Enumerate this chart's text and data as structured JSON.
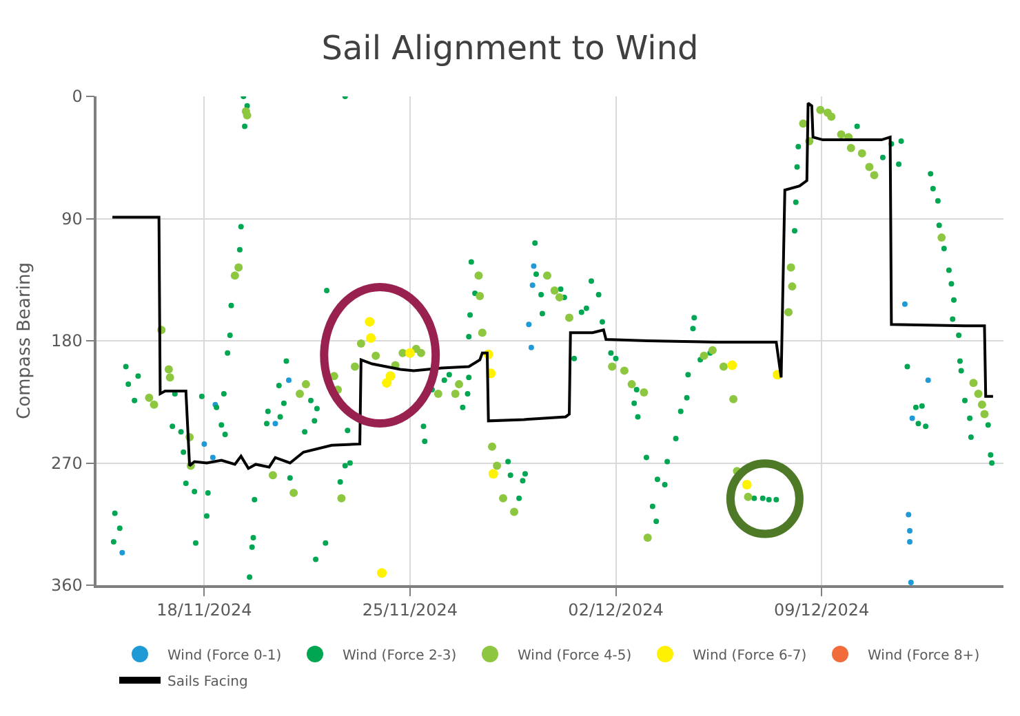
{
  "chart_data": {
    "type": "scatter",
    "title": "Sail Alignment to Wind",
    "ylabel": "Compass Bearing",
    "xlim": [
      "2024-11-14T08:00",
      "2024-12-15T04:30"
    ],
    "xticks": [
      {
        "value": "2024-11-18",
        "label": "18/11/2024"
      },
      {
        "value": "2024-11-25",
        "label": "25/11/2024"
      },
      {
        "value": "2024-12-02",
        "label": "02/12/2024"
      },
      {
        "value": "2024-12-09",
        "label": "09/12/2024"
      }
    ],
    "ylim": [
      360,
      0
    ],
    "yticks": [
      0,
      90,
      180,
      270,
      360
    ],
    "grid": true,
    "legend": "bottom",
    "marker": "circle",
    "line_style": "solid",
    "series": [
      {
        "name": "Wind (Force 0-1)",
        "color": "#1f9ad6",
        "x": [
          "2024-11-15T05:00",
          "2024-11-18T00:00",
          "2024-11-18T09:00",
          "2024-11-20T21:00",
          "2024-11-20T10:00",
          "2024-11-18T07:00",
          "2024-11-29T05:00",
          "2024-11-29T04:00",
          "2024-11-29T01:00",
          "2024-11-29T03:00",
          "2024-12-11T20:00",
          "2024-12-12T15:00",
          "2024-12-12T02:00",
          "2024-12-11T23:00",
          "2024-12-12T00:00",
          "2024-12-12T00:00",
          "2024-12-12T01:00"
        ],
        "values": [
          336,
          256,
          227,
          209,
          241,
          266,
          125,
          139,
          168,
          185,
          153,
          209,
          237,
          308,
          320,
          328,
          358
        ]
      },
      {
        "name": "Wind (Force 2-3)",
        "color": "#00a651",
        "x": [
          "2024-11-19T08:00",
          "2024-11-19T11:00",
          "2024-11-19T09:00",
          "2024-11-22T19:00",
          "2024-11-19T06:00",
          "2024-11-19T05:00",
          "2024-11-18T22:00",
          "2024-11-18T21:00",
          "2024-11-18T19:00",
          "2024-11-15T08:00",
          "2024-11-15T10:00",
          "2024-11-15T18:00",
          "2024-11-15T15:00",
          "2024-11-14T23:00",
          "2024-11-15T03:00",
          "2024-11-14T22:00",
          "2024-11-17T00:00",
          "2024-11-16T22:00",
          "2024-11-17T05:00",
          "2024-11-17T07:00",
          "2024-11-17T09:00",
          "2024-11-17T16:00",
          "2024-11-17T17:00",
          "2024-11-17T22:00",
          "2024-11-18T02:00",
          "2024-11-18T03:00",
          "2024-11-18T10:00",
          "2024-11-18T16:00",
          "2024-11-18T14:00",
          "2024-11-18T17:00",
          "2024-11-19T17:00",
          "2024-11-19T16:00",
          "2024-11-19T15:00",
          "2024-11-19T13:00",
          "2024-11-20T03:00",
          "2024-11-20T04:00",
          "2024-11-20T13:00",
          "2024-11-20T14:00",
          "2024-11-20T17:00",
          "2024-11-20T19:00",
          "2024-11-20T22:00",
          "2024-11-21T15:00",
          "2024-11-21T18:00",
          "2024-11-21T10:00",
          "2024-11-22T04:00",
          "2024-11-21T20:00",
          "2024-11-22T03:00",
          "2024-11-21T19:00",
          "2024-11-22T15:00",
          "2024-11-22T19:00",
          "2024-11-22T21:00",
          "2024-11-22T23:00",
          "2024-11-25T11:00",
          "2024-11-25T12:00",
          "2024-11-25T18:00",
          "2024-11-26T04:00",
          "2024-11-26T08:00",
          "2024-11-26T19:00",
          "2024-11-26T23:00",
          "2024-11-27T00:00",
          "2024-11-27T02:00",
          "2024-11-27T01:00",
          "2024-11-27T00:00",
          "2024-11-27T05:00",
          "2024-11-28T08:00",
          "2024-11-28T10:00",
          "2024-11-28T17:00",
          "2024-11-28T20:00",
          "2024-11-28T22:00",
          "2024-11-29T06:00",
          "2024-11-29T07:00",
          "2024-11-29T11:00",
          "2024-11-29T12:00",
          "2024-11-30T03:00",
          "2024-11-30T06:00",
          "2024-11-30T14:00",
          "2024-11-30T20:00",
          "2024-12-01T00:00",
          "2024-12-01T04:00",
          "2024-12-01T10:00",
          "2024-12-01T13:00",
          "2024-12-01T20:00",
          "2024-12-02T00:00",
          "2024-12-02T15:00",
          "2024-12-02T17:00",
          "2024-12-02T18:00",
          "2024-12-03T01:00",
          "2024-12-03T06:00",
          "2024-12-03T09:00",
          "2024-12-03T10:00",
          "2024-12-03T16:00",
          "2024-12-03T18:00",
          "2024-12-04T01:00",
          "2024-12-04T05:00",
          "2024-12-04T10:00",
          "2024-12-04T11:00",
          "2024-12-04T15:00",
          "2024-12-04T16:00",
          "2024-12-04T21:00",
          "2024-12-05T05:00",
          "2024-12-06T17:00",
          "2024-12-07T00:00",
          "2024-12-07T05:00",
          "2024-12-07T11:00",
          "2024-12-08T03:00",
          "2024-12-08T02:00",
          "2024-12-08T04:00",
          "2024-12-08T05:00",
          "2024-12-10T05:00",
          "2024-12-11T02:00",
          "2024-12-11T09:00",
          "2024-12-11T17:00",
          "2024-12-11T15:00",
          "2024-12-12T17:00",
          "2024-12-12T19:00",
          "2024-12-12T23:00",
          "2024-12-13T00:00",
          "2024-12-13T04:00",
          "2024-12-13T08:00",
          "2024-12-13T10:00",
          "2024-12-13T12:00",
          "2024-12-13T11:00",
          "2024-12-13T16:00",
          "2024-12-11T22:00",
          "2024-12-12T05:00",
          "2024-12-12T10:00",
          "2024-12-12T07:00",
          "2024-12-12T13:00",
          "2024-12-13T17:00",
          "2024-12-13T18:00",
          "2024-12-13T21:00",
          "2024-12-14T01:00",
          "2024-12-14T02:00",
          "2024-12-14T16:00",
          "2024-12-14T18:00",
          "2024-12-14T19:00"
        ],
        "values": [
          0,
          7,
          22,
          0,
          96,
          113,
          154,
          176,
          189,
          199,
          212,
          206,
          224,
          307,
          318,
          328,
          219,
          243,
          247,
          262,
          285,
          291,
          329,
          221,
          309,
          292,
          229,
          219,
          242,
          249,
          297,
          325,
          332,
          354,
          241,
          232,
          213,
          236,
          226,
          195,
          281,
          224,
          239,
          247,
          143,
          230,
          329,
          341,
          284,
          272,
          246,
          270,
          243,
          254,
          216,
          209,
          205,
          229,
          219,
          207,
          122,
          161,
          177,
          145,
          269,
          279,
          296,
          283,
          278,
          108,
          131,
          146,
          160,
          142,
          148,
          193,
          159,
          156,
          136,
          146,
          166,
          189,
          193,
          226,
          216,
          236,
          266,
          302,
          313,
          282,
          286,
          269,
          252,
          232,
          222,
          205,
          171,
          163,
          194,
          189,
          296,
          296,
          297,
          297,
          78,
          99,
          52,
          37,
          22,
          45,
          35,
          33,
          50,
          57,
          68,
          77,
          95,
          112,
          128,
          138,
          150,
          164,
          176,
          199,
          229,
          228,
          241,
          243,
          195,
          202,
          224,
          237,
          251,
          242,
          264,
          270
        ]
      },
      {
        "name": "Wind (Force 4-5)",
        "color": "#8dc63f",
        "x": [
          "2024-11-16T03:00",
          "2024-11-16T07:00",
          "2024-11-16T19:00",
          "2024-11-16T20:00",
          "2024-11-16T13:00",
          "2024-11-17T12:00",
          "2024-11-17T13:00",
          "2024-11-19T04:00",
          "2024-11-19T01:00",
          "2024-11-19T10:00",
          "2024-11-19T11:00",
          "2024-11-20T08:00",
          "2024-11-21T01:00",
          "2024-11-21T11:00",
          "2024-11-21T06:00",
          "2024-11-22T10:00",
          "2024-11-22T13:00",
          "2024-11-22T16:00",
          "2024-11-23T03:00",
          "2024-11-23T08:00",
          "2024-11-23T20:00",
          "2024-11-24T12:00",
          "2024-11-24T18:00",
          "2024-11-25T05:00",
          "2024-11-25T09:00",
          "2024-11-25T23:00",
          "2024-11-26T13:00",
          "2024-11-26T16:00",
          "2024-11-27T08:00",
          "2024-11-27T09:00",
          "2024-11-27T11:00",
          "2024-11-27T19:00",
          "2024-11-27T23:00",
          "2024-11-28T04:00",
          "2024-11-28T13:00",
          "2024-11-29T16:00",
          "2024-11-29T22:00",
          "2024-11-30T02:00",
          "2024-11-30T10:00",
          "2024-12-01T21:00",
          "2024-12-02T07:00",
          "2024-12-02T13:00",
          "2024-12-02T23:00",
          "2024-12-03T02:00",
          "2024-12-05T00:00",
          "2024-12-05T07:00",
          "2024-12-05T16:00",
          "2024-12-06T00:00",
          "2024-12-06T03:00",
          "2024-12-06T12:00",
          "2024-12-07T21:00",
          "2024-12-07T23:00",
          "2024-12-08T00:00",
          "2024-12-08T09:00",
          "2024-12-08T14:00",
          "2024-12-08T23:00",
          "2024-12-09T05:00",
          "2024-12-09T08:00",
          "2024-12-09T16:00",
          "2024-12-09T22:00",
          "2024-12-10T00:00",
          "2024-12-10T09:00",
          "2024-12-10T15:00",
          "2024-12-10T19:00",
          "2024-12-13T02:00",
          "2024-12-14T04:00",
          "2024-12-14T08:00",
          "2024-12-14T11:00",
          "2024-12-14T13:00"
        ],
        "values": [
          222,
          227,
          201,
          207,
          172,
          251,
          272,
          126,
          132,
          11,
          14,
          279,
          292,
          212,
          219,
          206,
          216,
          296,
          199,
          182,
          191,
          198,
          189,
          186,
          189,
          219,
          219,
          212,
          132,
          147,
          174,
          258,
          272,
          296,
          306,
          132,
          143,
          148,
          163,
          199,
          202,
          212,
          218,
          325,
          191,
          187,
          199,
          223,
          276,
          295,
          159,
          126,
          140,
          20,
          33,
          10,
          12,
          15,
          28,
          30,
          38,
          42,
          52,
          58,
          104,
          211,
          219,
          227,
          234
        ]
      },
      {
        "name": "Wind (Force 6-7)",
        "color": "#fff200",
        "x": [
          "2024-11-23T15:00",
          "2024-11-23T16:00",
          "2024-11-24T05:00",
          "2024-11-24T08:00",
          "2024-11-25T00:00",
          "2024-11-24T01:00",
          "2024-11-27T16:00",
          "2024-11-27T18:00",
          "2024-11-27T20:00",
          "2024-12-05T23:00",
          "2024-12-07T12:00",
          "2024-12-06T11:00"
        ],
        "values": [
          166,
          178,
          211,
          206,
          189,
          351,
          190,
          204,
          278,
          198,
          205,
          286
        ]
      },
      {
        "name": "Wind (Force 8+)",
        "color": "#f26b3a"
      },
      {
        "name": "Sails Facing",
        "type": "line",
        "marker": "none",
        "color": "#000000",
        "x": [
          "2024-11-14T21:00",
          "2024-11-16T11:00",
          "2024-11-16T12:00",
          "2024-11-16T16:00",
          "2024-11-17T09:00",
          "2024-11-17T12:00",
          "2024-11-17T16:00",
          "2024-11-18T02:00",
          "2024-11-18T14:00",
          "2024-11-19T01:00",
          "2024-11-19T06:00",
          "2024-11-19T12:00",
          "2024-11-19T18:00",
          "2024-11-20T05:00",
          "2024-11-20T10:00",
          "2024-11-20T22:00",
          "2024-11-21T09:00",
          "2024-11-22T08:00",
          "2024-11-23T07:00",
          "2024-11-23T08:00",
          "2024-11-23T17:00",
          "2024-11-24T16:00",
          "2024-11-25T03:00",
          "2024-11-26T02:00",
          "2024-11-27T00:00",
          "2024-11-27T09:00",
          "2024-11-27T11:00",
          "2024-11-27T15:00",
          "2024-11-27T16:00",
          "2024-11-28T21:00",
          "2024-11-30T07:00",
          "2024-11-30T10:00",
          "2024-11-30T11:00",
          "2024-12-01T05:00",
          "2024-12-01T14:00",
          "2024-12-01T16:00",
          "2024-12-03T02:00",
          "2024-12-05T10:00",
          "2024-12-07T11:00",
          "2024-12-07T15:00",
          "2024-12-07T18:00",
          "2024-12-08T06:00",
          "2024-12-08T12:00",
          "2024-12-08T13:00",
          "2024-12-08T16:00",
          "2024-12-08T17:00",
          "2024-12-09T01:00",
          "2024-12-11T01:00",
          "2024-12-11T08:00",
          "2024-12-11T09:00",
          "2024-12-13T21:00",
          "2024-12-14T13:00",
          "2024-12-14T14:00",
          "2024-12-14T20:00"
        ],
        "values": [
          89,
          89,
          219,
          217,
          217,
          272,
          269,
          270,
          268,
          271,
          265,
          274,
          271,
          273,
          266,
          270,
          262,
          257,
          256,
          194,
          197,
          201,
          202,
          200,
          199,
          194,
          189,
          189,
          239,
          238,
          236,
          234,
          174,
          174,
          172,
          179,
          180,
          181,
          181,
          207,
          69,
          66,
          62,
          5,
          7,
          30,
          32,
          32,
          30,
          168,
          169,
          169,
          221,
          221
        ]
      }
    ]
  }
}
